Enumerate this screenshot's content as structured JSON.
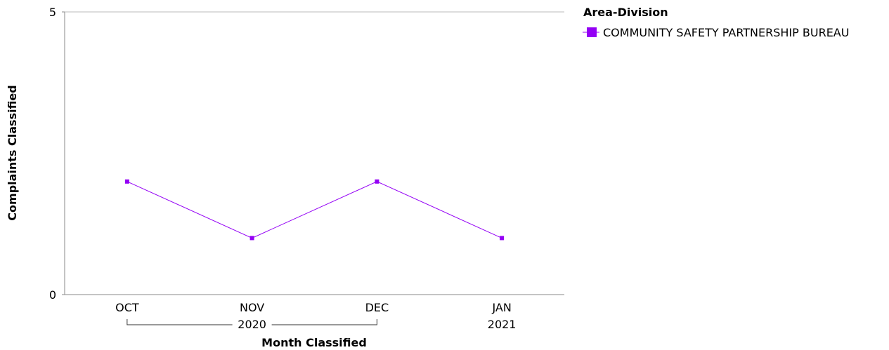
{
  "chart_data": {
    "type": "line",
    "xlabel": "Month Classified",
    "ylabel": "Complaints Classified",
    "ylim": [
      0,
      5
    ],
    "y_ticks": [
      "0",
      "5"
    ],
    "x_ticks": [
      {
        "label": "OCT"
      },
      {
        "label": "NOV"
      },
      {
        "label": "DEC"
      },
      {
        "label": "JAN"
      }
    ],
    "year_groups": [
      {
        "label": "2020",
        "from": 0,
        "to": 2
      },
      {
        "label": "2021",
        "from": 3,
        "to": 3
      }
    ],
    "legend": {
      "title": "Area-Division",
      "position": "right"
    },
    "series": [
      {
        "name": "COMMUNITY SAFETY PARTNERSHIP BUREAU",
        "color": "#9400f5",
        "values": [
          2,
          1,
          2,
          1
        ]
      }
    ],
    "grid": false
  }
}
